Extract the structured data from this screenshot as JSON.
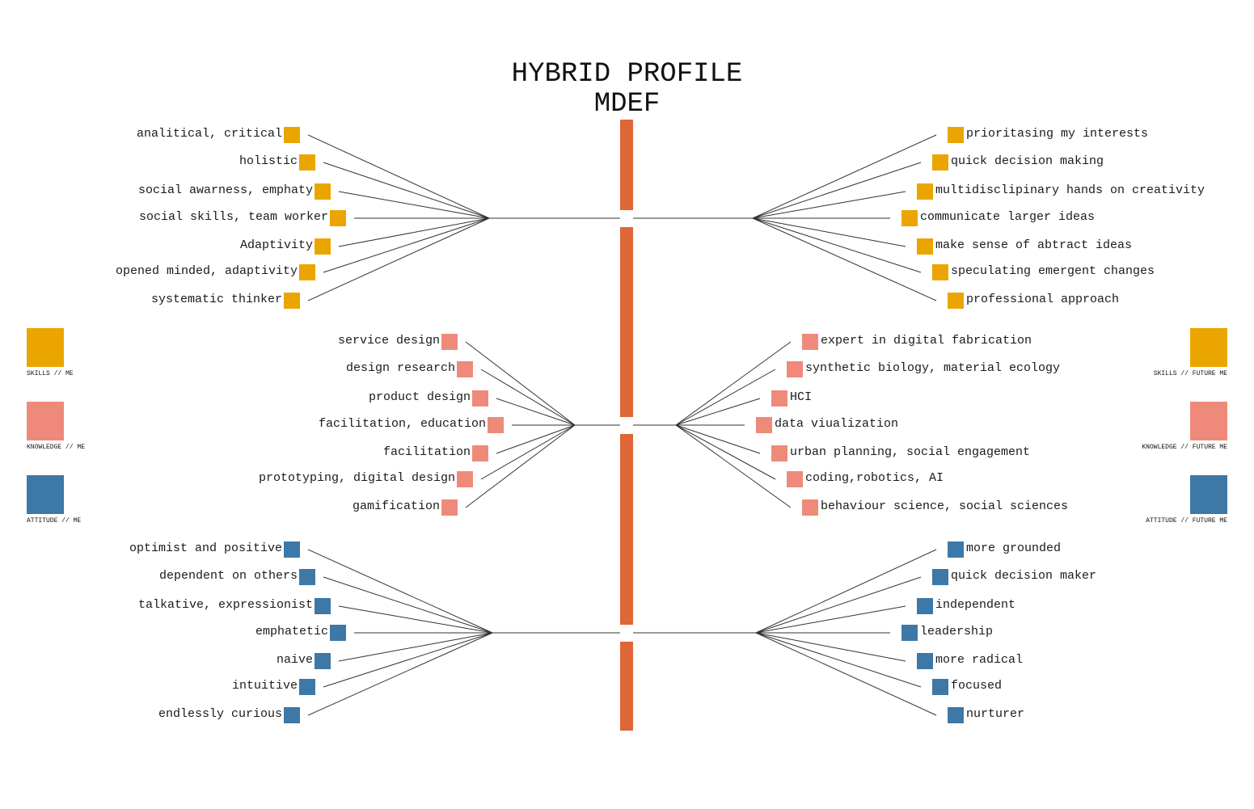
{
  "title": {
    "line1": "HYBRID PROFILE",
    "line2": "MDEF"
  },
  "colors": {
    "skills": "#EBA500",
    "knowledge": "#EF8A7A",
    "attitude": "#3D78A6",
    "spine": "#DE6637",
    "line": "#333333"
  },
  "legend": {
    "left": [
      "SKILLS // ME",
      "KNOWLEDGE // ME",
      "ATTITUDE // ME"
    ],
    "right": [
      "SKILLS // FUTURE ME",
      "KNOWLEDGE // FUTURE ME",
      "ATTITUDE // FUTURE ME"
    ]
  },
  "groups": [
    {
      "category": "skills",
      "left": [
        "analitical, critical",
        "holistic",
        "social awarness, emphaty",
        "social skills, team worker",
        "Adaptivity",
        "opened minded, adaptivity",
        "systematic thinker"
      ],
      "right": [
        "prioritasing my interests",
        "quick decision making",
        "multidisclipinary hands on creativity",
        "communicate larger ideas",
        "make sense of abtract ideas",
        "speculating emergent changes",
        "professional approach"
      ]
    },
    {
      "category": "knowledge",
      "left": [
        "service design",
        "design research",
        "product design",
        "facilitation, education",
        "facilitation",
        "prototyping, digital design",
        "gamification"
      ],
      "right": [
        "expert in digital fabrication",
        "synthetic biology, material ecology",
        "HCI",
        "data viualization",
        "urban planning, social engagement",
        "coding,robotics, AI",
        "behaviour science, social sciences"
      ]
    },
    {
      "category": "attitude",
      "left": [
        "optimist and positive",
        "dependent on others",
        "talkative, expressionist",
        "emphatetic",
        "naive",
        "intuitive",
        "endlessly curious"
      ],
      "right": [
        "more grounded",
        "quick decision maker",
        "independent",
        "leadership",
        "more radical",
        "focused",
        "nurturer"
      ]
    }
  ]
}
